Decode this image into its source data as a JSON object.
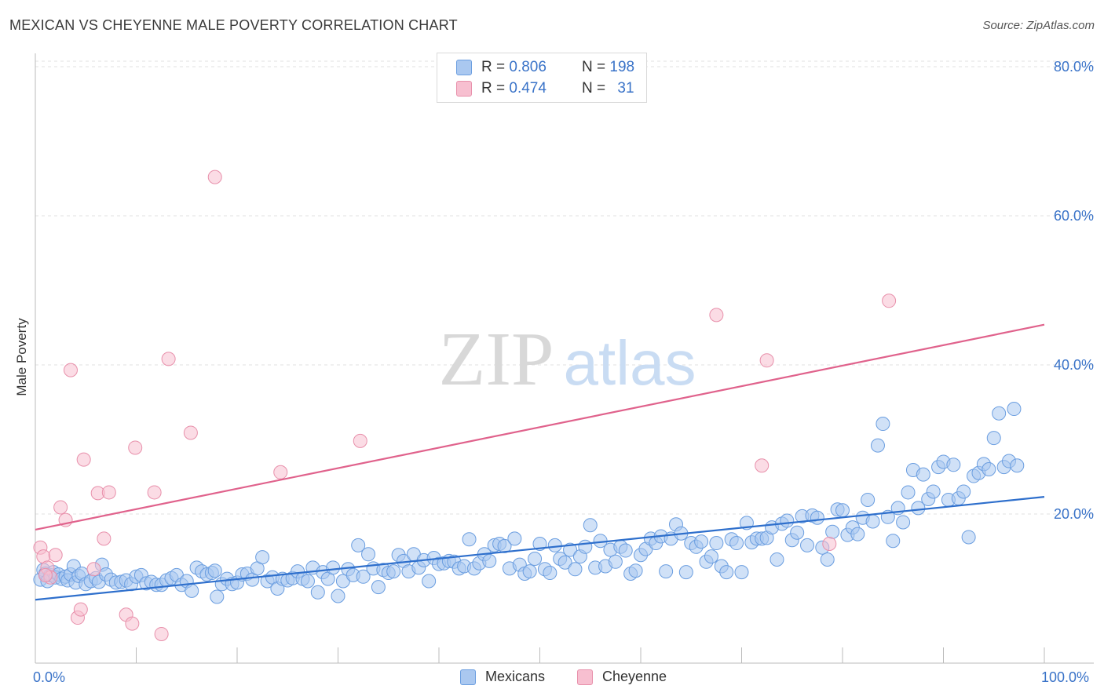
{
  "title": "MEXICAN VS CHEYENNE MALE POVERTY CORRELATION CHART",
  "source": "Source: ZipAtlas.com",
  "watermark": {
    "zip": "ZIP",
    "atlas": "atlas"
  },
  "legend_top": {
    "rows": [
      {
        "r_label": "R =",
        "r_value": "0.806",
        "n_label": "N =",
        "n_value": "198"
      },
      {
        "r_label": "R =",
        "r_value": "0.474",
        "n_label": "N =",
        "n_value": "31"
      }
    ]
  },
  "legend_bottom": {
    "items": [
      "Mexicans",
      "Cheyenne"
    ]
  },
  "colors": {
    "mexicans_fill": "#aac8f0",
    "mexicans_stroke": "#6b9ee0",
    "mexicans_line": "#2e6fcc",
    "cheyenne_fill": "#f7bfd0",
    "cheyenne_stroke": "#e890ab",
    "cheyenne_line": "#e0628c",
    "axis_text": "#3a73c8",
    "grid": "#e2e2e2"
  },
  "chart_data": {
    "type": "scatter",
    "title": "MEXICAN VS CHEYENNE MALE POVERTY CORRELATION CHART",
    "xlabel": "",
    "ylabel": "Male Poverty",
    "xlim": [
      0,
      100
    ],
    "ylim": [
      0,
      80
    ],
    "x_tick_labels": [
      "0.0%",
      "100.0%"
    ],
    "y_ticks": [
      20,
      40,
      60,
      80
    ],
    "y_tick_labels": [
      "20.0%",
      "40.0%",
      "60.0%",
      "80.0%"
    ],
    "grid": "horizontal dashed",
    "legend_placement": "top-center and bottom",
    "series": [
      {
        "name": "Mexicans",
        "r": 0.806,
        "n": 198,
        "trend": {
          "x": [
            0,
            100
          ],
          "y": [
            8.5,
            22.3
          ]
        },
        "points": [
          [
            0.5,
            11.2
          ],
          [
            0.8,
            12.5
          ],
          [
            1.0,
            12.0
          ],
          [
            1.2,
            11.0
          ],
          [
            1.5,
            11.8
          ],
          [
            1.8,
            12.2
          ],
          [
            2.0,
            11.5
          ],
          [
            2.3,
            11.9
          ],
          [
            2.6,
            11.3
          ],
          [
            3.0,
            11.6
          ],
          [
            3.2,
            11.1
          ],
          [
            3.5,
            11.9
          ],
          [
            3.8,
            13.0
          ],
          [
            4.0,
            10.8
          ],
          [
            4.3,
            11.7
          ],
          [
            4.6,
            12.0
          ],
          [
            5.0,
            10.6
          ],
          [
            5.5,
            11.0
          ],
          [
            6.0,
            11.4
          ],
          [
            6.3,
            10.9
          ],
          [
            6.6,
            13.2
          ],
          [
            7.0,
            11.9
          ],
          [
            7.5,
            11.2
          ],
          [
            8.0,
            10.8
          ],
          [
            8.5,
            10.9
          ],
          [
            9.0,
            11.1
          ],
          [
            9.5,
            10.6
          ],
          [
            10.0,
            11.6
          ],
          [
            10.5,
            11.8
          ],
          [
            11.0,
            10.7
          ],
          [
            11.5,
            10.9
          ],
          [
            12.0,
            10.5
          ],
          [
            12.5,
            10.5
          ],
          [
            13.0,
            11.1
          ],
          [
            13.5,
            11.4
          ],
          [
            14.0,
            11.8
          ],
          [
            14.5,
            10.5
          ],
          [
            15.0,
            11.0
          ],
          [
            15.5,
            9.7
          ],
          [
            16.0,
            12.8
          ],
          [
            16.5,
            12.3
          ],
          [
            17.0,
            11.9
          ],
          [
            17.5,
            12.1
          ],
          [
            17.8,
            12.4
          ],
          [
            18.0,
            8.9
          ],
          [
            18.5,
            10.6
          ],
          [
            19.0,
            11.3
          ],
          [
            19.5,
            10.6
          ],
          [
            20.0,
            10.8
          ],
          [
            20.5,
            11.9
          ],
          [
            21.0,
            12.0
          ],
          [
            21.5,
            11.2
          ],
          [
            22.0,
            12.7
          ],
          [
            22.5,
            14.2
          ],
          [
            23.0,
            11.0
          ],
          [
            23.5,
            11.5
          ],
          [
            24.0,
            10.0
          ],
          [
            24.5,
            11.3
          ],
          [
            25.0,
            11.1
          ],
          [
            25.5,
            11.4
          ],
          [
            26.0,
            12.3
          ],
          [
            26.5,
            11.3
          ],
          [
            27.0,
            11.0
          ],
          [
            27.5,
            12.8
          ],
          [
            28.0,
            9.5
          ],
          [
            28.5,
            12.2
          ],
          [
            29.0,
            11.3
          ],
          [
            29.5,
            12.8
          ],
          [
            30.0,
            9.0
          ],
          [
            30.5,
            11.0
          ],
          [
            31.0,
            12.6
          ],
          [
            31.5,
            11.8
          ],
          [
            32.0,
            15.8
          ],
          [
            32.5,
            11.6
          ],
          [
            33.0,
            14.6
          ],
          [
            33.5,
            12.7
          ],
          [
            34.0,
            10.2
          ],
          [
            34.5,
            12.5
          ],
          [
            35.0,
            12.1
          ],
          [
            35.5,
            12.3
          ],
          [
            36.0,
            14.5
          ],
          [
            36.5,
            13.7
          ],
          [
            37.0,
            12.3
          ],
          [
            37.5,
            14.6
          ],
          [
            38.0,
            12.8
          ],
          [
            38.5,
            13.8
          ],
          [
            39.0,
            11.0
          ],
          [
            39.5,
            14.1
          ],
          [
            40.0,
            13.3
          ],
          [
            40.5,
            13.4
          ],
          [
            41.0,
            13.7
          ],
          [
            41.5,
            13.6
          ],
          [
            42.0,
            12.7
          ],
          [
            42.5,
            13.0
          ],
          [
            43.0,
            16.6
          ],
          [
            43.5,
            12.7
          ],
          [
            44.0,
            13.4
          ],
          [
            44.5,
            14.6
          ],
          [
            45.0,
            13.7
          ],
          [
            45.5,
            15.8
          ],
          [
            46.0,
            16.0
          ],
          [
            46.5,
            15.7
          ],
          [
            47.0,
            12.7
          ],
          [
            47.5,
            16.7
          ],
          [
            48.0,
            13.2
          ],
          [
            48.5,
            12.0
          ],
          [
            49.0,
            12.3
          ],
          [
            49.5,
            14.0
          ],
          [
            50.0,
            16.0
          ],
          [
            50.5,
            12.6
          ],
          [
            51.0,
            12.1
          ],
          [
            51.5,
            15.8
          ],
          [
            52.0,
            14.0
          ],
          [
            52.5,
            13.5
          ],
          [
            53.0,
            15.2
          ],
          [
            53.5,
            12.6
          ],
          [
            54.0,
            14.3
          ],
          [
            54.5,
            15.6
          ],
          [
            55.0,
            18.5
          ],
          [
            55.5,
            12.8
          ],
          [
            56.0,
            16.4
          ],
          [
            56.5,
            13.0
          ],
          [
            57.0,
            15.2
          ],
          [
            57.5,
            13.6
          ],
          [
            58.0,
            15.6
          ],
          [
            58.5,
            15.1
          ],
          [
            59.0,
            12.0
          ],
          [
            59.5,
            12.4
          ],
          [
            60.0,
            14.5
          ],
          [
            60.5,
            15.3
          ],
          [
            61.0,
            16.7
          ],
          [
            61.5,
            16.1
          ],
          [
            62.0,
            17.0
          ],
          [
            62.5,
            12.3
          ],
          [
            63.0,
            16.7
          ],
          [
            63.5,
            18.6
          ],
          [
            64.0,
            17.4
          ],
          [
            64.5,
            12.2
          ],
          [
            65.0,
            16.1
          ],
          [
            65.5,
            15.6
          ],
          [
            66.0,
            16.3
          ],
          [
            66.5,
            13.6
          ],
          [
            67.0,
            14.3
          ],
          [
            67.5,
            16.1
          ],
          [
            68.0,
            13.0
          ],
          [
            68.5,
            12.2
          ],
          [
            69.0,
            16.6
          ],
          [
            69.5,
            16.1
          ],
          [
            70.0,
            12.2
          ],
          [
            70.5,
            18.8
          ],
          [
            71.0,
            16.2
          ],
          [
            71.5,
            16.7
          ],
          [
            72.0,
            16.7
          ],
          [
            72.5,
            16.8
          ],
          [
            73.0,
            18.2
          ],
          [
            73.5,
            13.9
          ],
          [
            74.0,
            18.7
          ],
          [
            74.5,
            19.1
          ],
          [
            75.0,
            16.5
          ],
          [
            75.5,
            17.5
          ],
          [
            76.0,
            19.7
          ],
          [
            76.5,
            15.8
          ],
          [
            77.0,
            19.8
          ],
          [
            77.5,
            19.5
          ],
          [
            78.0,
            15.5
          ],
          [
            78.5,
            13.9
          ],
          [
            79.0,
            17.6
          ],
          [
            79.5,
            20.6
          ],
          [
            80.0,
            20.5
          ],
          [
            80.5,
            17.2
          ],
          [
            81.0,
            18.2
          ],
          [
            81.5,
            17.3
          ],
          [
            82.0,
            19.5
          ],
          [
            82.5,
            21.9
          ],
          [
            83.0,
            19.0
          ],
          [
            83.5,
            29.2
          ],
          [
            84.0,
            32.1
          ],
          [
            84.5,
            19.6
          ],
          [
            85.0,
            16.4
          ],
          [
            85.5,
            20.8
          ],
          [
            86.0,
            18.9
          ],
          [
            86.5,
            22.9
          ],
          [
            87.0,
            25.9
          ],
          [
            87.5,
            20.8
          ],
          [
            88.0,
            25.3
          ],
          [
            88.5,
            22.0
          ],
          [
            89.0,
            23.0
          ],
          [
            89.5,
            26.3
          ],
          [
            90.0,
            27.0
          ],
          [
            90.5,
            21.9
          ],
          [
            91.0,
            26.6
          ],
          [
            91.5,
            22.1
          ],
          [
            92.0,
            23.0
          ],
          [
            92.5,
            16.9
          ],
          [
            93.0,
            25.1
          ],
          [
            93.5,
            25.5
          ],
          [
            94.0,
            26.7
          ],
          [
            94.5,
            26.0
          ],
          [
            95.0,
            30.2
          ],
          [
            95.5,
            33.5
          ],
          [
            96.0,
            26.3
          ],
          [
            96.5,
            27.1
          ],
          [
            97.0,
            34.1
          ],
          [
            97.3,
            26.5
          ]
        ]
      },
      {
        "name": "Cheyenne",
        "r": 0.474,
        "n": 31,
        "trend": {
          "x": [
            0,
            100
          ],
          "y": [
            17.9,
            45.4
          ]
        },
        "points": [
          [
            0.5,
            15.5
          ],
          [
            0.8,
            14.3
          ],
          [
            1.2,
            12.8
          ],
          [
            1.5,
            11.5
          ],
          [
            2.0,
            14.5
          ],
          [
            2.5,
            20.9
          ],
          [
            3.0,
            19.2
          ],
          [
            3.5,
            39.3
          ],
          [
            4.2,
            6.1
          ],
          [
            4.5,
            7.2
          ],
          [
            4.8,
            27.3
          ],
          [
            5.8,
            12.6
          ],
          [
            6.2,
            22.8
          ],
          [
            6.8,
            16.7
          ],
          [
            7.3,
            22.9
          ],
          [
            9.0,
            6.5
          ],
          [
            9.6,
            5.3
          ],
          [
            9.9,
            28.9
          ],
          [
            11.8,
            22.9
          ],
          [
            12.5,
            3.9
          ],
          [
            13.2,
            40.8
          ],
          [
            15.4,
            30.9
          ],
          [
            17.8,
            65.2
          ],
          [
            24.3,
            25.6
          ],
          [
            32.2,
            29.8
          ],
          [
            67.5,
            46.7
          ],
          [
            72.0,
            26.5
          ],
          [
            72.5,
            40.6
          ],
          [
            78.7,
            16.0
          ],
          [
            84.6,
            48.6
          ],
          [
            1.0,
            11.8
          ]
        ]
      }
    ]
  }
}
